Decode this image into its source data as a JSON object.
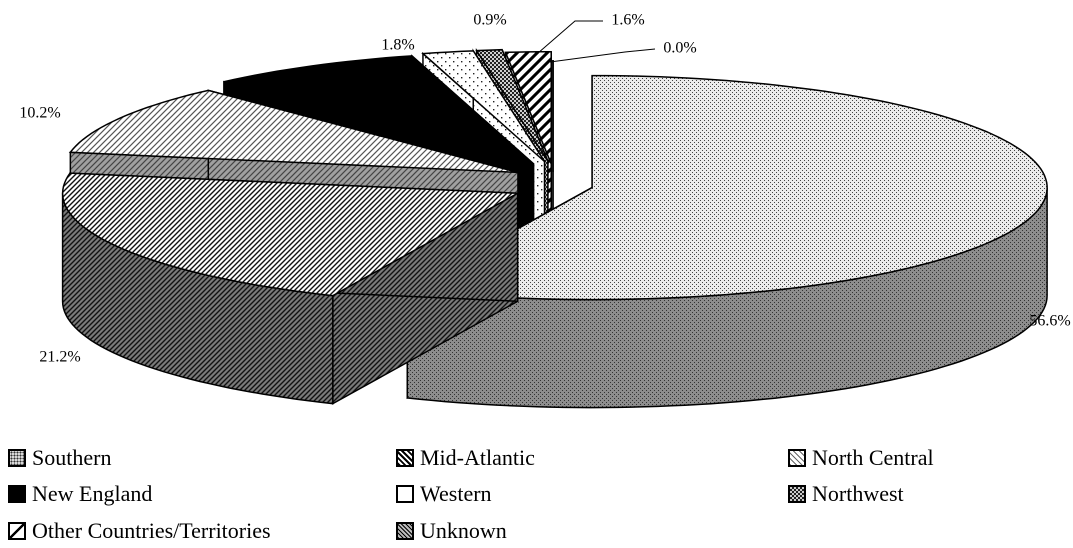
{
  "chart_data": {
    "type": "pie",
    "style": "3d-exploded",
    "title": "",
    "legend_position": "bottom",
    "slices": [
      {
        "name": "Southern",
        "value": 56.6,
        "label": "56.6%",
        "pattern": "dots",
        "color": "#bdbdbd"
      },
      {
        "name": "Mid-Atlantic",
        "value": 21.2,
        "label": "21.2%",
        "pattern": "diag-dense",
        "color": "#8a8a8a"
      },
      {
        "name": "North Central",
        "value": 10.2,
        "label": "10.2%",
        "pattern": "diag-light",
        "color": "#cfcfcf"
      },
      {
        "name": "New England",
        "value": 7.6,
        "label": "7.6%",
        "pattern": "solid",
        "color": "#000000"
      },
      {
        "name": "Western",
        "value": 1.8,
        "label": "1.8%",
        "pattern": "sparse-dots",
        "color": "#ffffff"
      },
      {
        "name": "Northwest",
        "value": 0.9,
        "label": "0.9%",
        "pattern": "checker",
        "color": "#7a7a7a"
      },
      {
        "name": "Other Countries/Territories",
        "value": 1.6,
        "label": "1.6%",
        "pattern": "wide-diag",
        "color": "#ffffff"
      },
      {
        "name": "Unknown",
        "value": 0.0,
        "label": "0.0%",
        "pattern": "cross",
        "color": "#9a9a9a"
      }
    ]
  }
}
